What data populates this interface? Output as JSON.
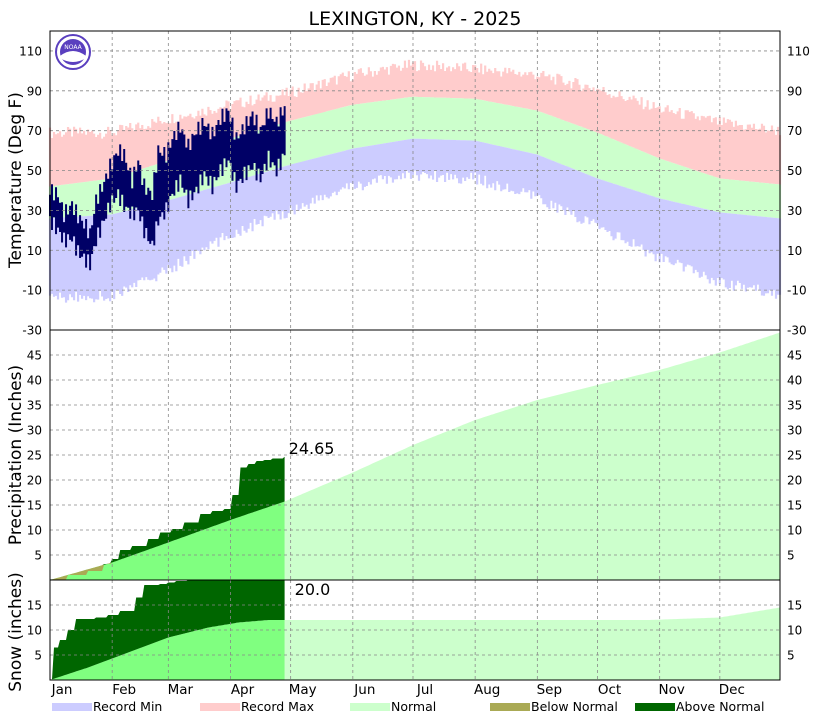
{
  "title": "LEXINGTON, KY - 2025",
  "chart_data": [
    {
      "type": "area",
      "panel": "temperature",
      "ylabel": "Temperature (Deg F)",
      "yticks": [
        -10,
        10,
        30,
        50,
        70,
        90,
        110
      ],
      "yticks_right": [
        -30,
        -10,
        10,
        30,
        50,
        70,
        90,
        110
      ],
      "bottom_label": "-30",
      "ylim": [
        -30,
        120
      ],
      "x_unit": "day of year",
      "bands": {
        "record_max_anchors": {
          "day": [
            1,
            32,
            60,
            91,
            121,
            152,
            182,
            213,
            244,
            274,
            305,
            335,
            365
          ],
          "value": [
            69,
            69,
            76,
            83,
            89,
            98,
            103,
            101,
            98,
            91,
            81,
            74,
            70
          ]
        },
        "normal_high_anchors": {
          "day": [
            1,
            32,
            60,
            91,
            121,
            152,
            182,
            213,
            244,
            274,
            305,
            335,
            365
          ],
          "value": [
            42,
            46,
            55,
            66,
            75,
            83,
            87,
            86,
            80,
            69,
            56,
            46,
            43
          ]
        },
        "normal_low_anchors": {
          "day": [
            1,
            32,
            60,
            91,
            121,
            152,
            182,
            213,
            244,
            274,
            305,
            335,
            365
          ],
          "value": [
            26,
            28,
            35,
            44,
            53,
            61,
            66,
            65,
            58,
            46,
            36,
            29,
            26
          ]
        },
        "record_min_anchors": {
          "day": [
            1,
            32,
            60,
            91,
            121,
            152,
            182,
            213,
            244,
            274,
            305,
            335,
            365
          ],
          "value": [
            -14,
            -13,
            0,
            18,
            30,
            42,
            48,
            46,
            36,
            22,
            6,
            -6,
            -12
          ]
        }
      },
      "observed": {
        "through_day": 118,
        "day": [
          1,
          5,
          8,
          12,
          15,
          19,
          21,
          24,
          28,
          31,
          35,
          38,
          42,
          45,
          48,
          52,
          55,
          59,
          62,
          66,
          70,
          74,
          78,
          82,
          86,
          90,
          94,
          98,
          102,
          106,
          110,
          114,
          118
        ],
        "high": [
          40,
          38,
          28,
          33,
          27,
          22,
          18,
          35,
          44,
          52,
          60,
          58,
          45,
          55,
          42,
          38,
          60,
          58,
          66,
          72,
          62,
          70,
          74,
          68,
          76,
          80,
          66,
          72,
          78,
          70,
          80,
          74,
          82
        ],
        "low": [
          25,
          20,
          15,
          16,
          9,
          5,
          3,
          15,
          25,
          33,
          38,
          32,
          28,
          30,
          20,
          12,
          25,
          30,
          38,
          45,
          35,
          40,
          48,
          42,
          50,
          55,
          42,
          48,
          52,
          46,
          56,
          50,
          58
        ]
      }
    },
    {
      "type": "area",
      "panel": "precipitation",
      "ylabel": "Precipitation (Inches)",
      "yticks": [
        5,
        10,
        15,
        20,
        25,
        30,
        35,
        40,
        45
      ],
      "ylim": [
        0,
        50
      ],
      "normal_anchors": {
        "day": [
          1,
          32,
          60,
          91,
          118,
          152,
          182,
          213,
          244,
          274,
          305,
          335,
          365
        ],
        "value": [
          0,
          3.5,
          7.5,
          12,
          15.7,
          21.5,
          27,
          32,
          36,
          39,
          42,
          45.5,
          49.5
        ]
      },
      "observed_anchors": {
        "day": [
          1,
          10,
          20,
          28,
          32,
          36,
          42,
          50,
          56,
          62,
          68,
          76,
          82,
          88,
          92,
          96,
          100,
          104,
          108,
          112,
          118
        ],
        "value": [
          0.1,
          1.0,
          1.8,
          3.2,
          4.2,
          6.0,
          6.8,
          8.2,
          9.5,
          10.2,
          11.5,
          13.2,
          13.8,
          14.2,
          17.0,
          22.5,
          23.2,
          23.8,
          24.0,
          24.3,
          24.65
        ]
      },
      "final_label": "24.65"
    },
    {
      "type": "area",
      "panel": "snow",
      "ylabel": "Snow (inches)",
      "yticks": [
        5,
        10,
        15
      ],
      "ylim": [
        0,
        20
      ],
      "normal_anchors": {
        "day": [
          1,
          20,
          40,
          60,
          80,
          95,
          110,
          118,
          150,
          200,
          250,
          300,
          335,
          365
        ],
        "value": [
          0,
          2.5,
          5.5,
          8.5,
          10.5,
          11.5,
          12,
          12,
          12,
          12,
          12,
          12,
          12.5,
          14.5
        ]
      },
      "observed_anchors": {
        "day": [
          1,
          3,
          6,
          10,
          14,
          18,
          24,
          30,
          36,
          40,
          44,
          48,
          56,
          60,
          64,
          70,
          80,
          90,
          100,
          118
        ],
        "value": [
          0,
          6.5,
          8.0,
          10.0,
          12.2,
          12.2,
          12.5,
          13.0,
          13.8,
          13.8,
          16.5,
          19.0,
          19.2,
          19.5,
          19.8,
          20.0,
          20.0,
          20.0,
          20.0,
          20.0
        ]
      },
      "final_label": "20.0"
    }
  ],
  "months": [
    "Jan",
    "Feb",
    "Mar",
    "Apr",
    "May",
    "Jun",
    "Jul",
    "Aug",
    "Sep",
    "Oct",
    "Nov",
    "Dec"
  ],
  "legend": [
    {
      "label": "Record Min",
      "color": "#ccccff"
    },
    {
      "label": "Record Max",
      "color": "#ffcccc"
    },
    {
      "label": "Normal",
      "color": "#ccffcc"
    },
    {
      "label": "Below Normal",
      "color": "#aaaa55"
    },
    {
      "label": "Above Normal",
      "color": "#006600"
    }
  ],
  "colors": {
    "observed_temp": "#000066",
    "normal_to_date": "#80ff80",
    "normal_future": "#ccffcc",
    "above_normal": "#006600",
    "below_normal": "#aaaa55",
    "record_max": "#ffcccc",
    "record_min": "#ccccff",
    "grid": "#888888"
  },
  "logo": {
    "text": "NOAA",
    "color": "#5a3fbf"
  }
}
